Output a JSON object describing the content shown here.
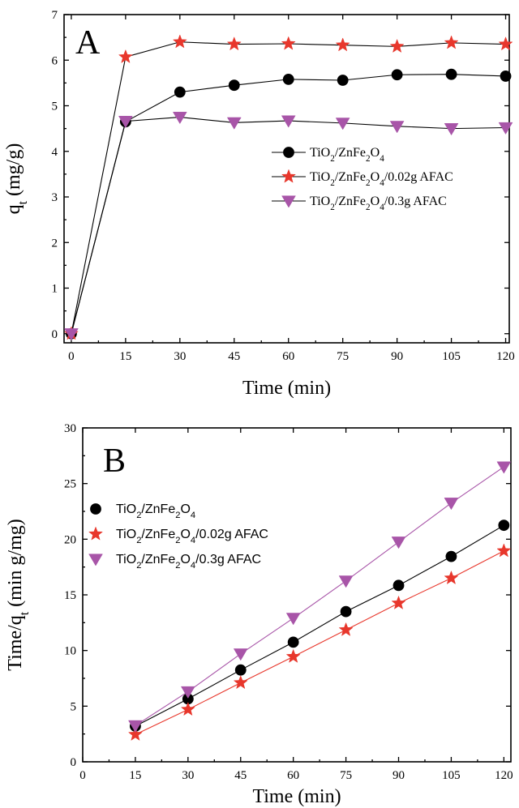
{
  "chart_data": [
    {
      "panel": "A",
      "type": "line",
      "xlabel": "Time (min)",
      "ylabel_main": "q",
      "ylabel_sub": "t",
      "ylabel_unit": "(mg/g)",
      "xlim": [
        -2,
        121
      ],
      "ylim": [
        -0.2,
        7
      ],
      "xticks": [
        0,
        15,
        30,
        45,
        60,
        75,
        90,
        105,
        120
      ],
      "yticks": [
        0,
        1,
        2,
        3,
        4,
        5,
        6,
        7
      ],
      "x": [
        0,
        15,
        30,
        45,
        60,
        75,
        90,
        105,
        120
      ],
      "legend_position": "right",
      "series": [
        {
          "id": "s1",
          "label": "TiO2/ZnFe2O4",
          "marker": "circle",
          "color": "#000000",
          "line_color": "#000000",
          "values": [
            0,
            4.65,
            5.3,
            5.45,
            5.58,
            5.56,
            5.68,
            5.69,
            5.65
          ]
        },
        {
          "id": "s2",
          "label": "TiO2/ZnFe2O4/0.02g AFAC",
          "marker": "star",
          "color": "#e8372c",
          "line_color": "#000000",
          "values": [
            0,
            6.07,
            6.4,
            6.35,
            6.36,
            6.33,
            6.3,
            6.38,
            6.35
          ]
        },
        {
          "id": "s3",
          "label": "TiO2/ZnFe2O4/0.3g AFAC",
          "marker": "triangle-down",
          "color": "#a855a8",
          "line_color": "#000000",
          "values": [
            0,
            4.66,
            4.75,
            4.63,
            4.67,
            4.62,
            4.55,
            4.5,
            4.52
          ]
        }
      ]
    },
    {
      "panel": "B",
      "type": "scatter",
      "xlabel": "Time (min)",
      "ylabel_main": "Time/q",
      "ylabel_sub": "t",
      "ylabel_unit": "(min g/mg)",
      "xlim": [
        0,
        122
      ],
      "ylim": [
        0,
        30
      ],
      "xticks": [
        0,
        15,
        30,
        45,
        60,
        75,
        90,
        105,
        120
      ],
      "yticks": [
        0,
        5,
        10,
        15,
        20,
        25,
        30
      ],
      "x": [
        15,
        30,
        45,
        60,
        75,
        90,
        105,
        120
      ],
      "legend_position": "top-left",
      "series": [
        {
          "id": "s1",
          "label": "TiO2/ZnFe2O4",
          "marker": "circle",
          "color": "#000000",
          "line_color": "#000000",
          "values": [
            3.2,
            5.65,
            8.25,
            10.75,
            13.5,
            15.85,
            18.45,
            21.25
          ]
        },
        {
          "id": "s2",
          "label": "TiO2/ZnFe2O4/0.02g AFAC",
          "marker": "star",
          "color": "#e8372c",
          "line_color": "#e8372c",
          "values": [
            2.45,
            4.7,
            7.1,
            9.45,
            11.85,
            14.25,
            16.5,
            18.95
          ]
        },
        {
          "id": "s3",
          "label": "TiO2/ZnFe2O4/0.3g AFAC",
          "marker": "triangle-down",
          "color": "#a855a8",
          "line_color": "#a855a8",
          "values": [
            3.25,
            6.3,
            9.7,
            12.9,
            16.25,
            19.75,
            23.25,
            26.5
          ]
        }
      ]
    }
  ]
}
